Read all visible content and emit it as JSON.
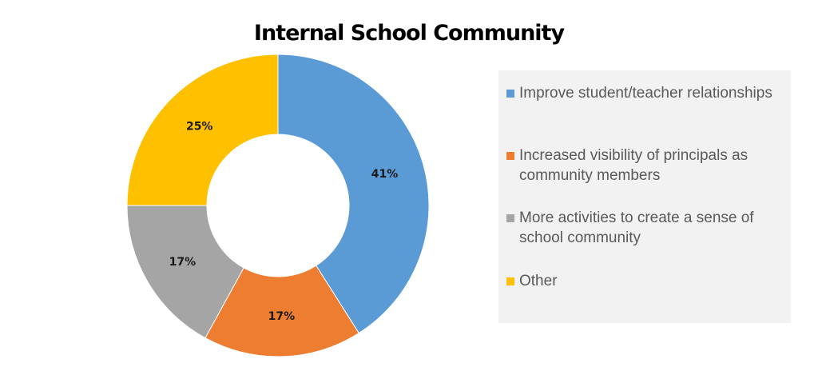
{
  "chart_data": {
    "type": "pie",
    "title": "Internal School Community",
    "categories": [
      "Improve student/teacher relationships",
      "Increased visibility of principals as community members",
      "More activities to create a sense of school community",
      "Other"
    ],
    "values": [
      41,
      17,
      17,
      25
    ],
    "data_labels": [
      "41%",
      "17%",
      "17%",
      "25%"
    ],
    "colors": [
      "#5b9bd5",
      "#ed7d31",
      "#a5a5a5",
      "#ffc000"
    ],
    "legend_placement": "right",
    "donut": true
  }
}
